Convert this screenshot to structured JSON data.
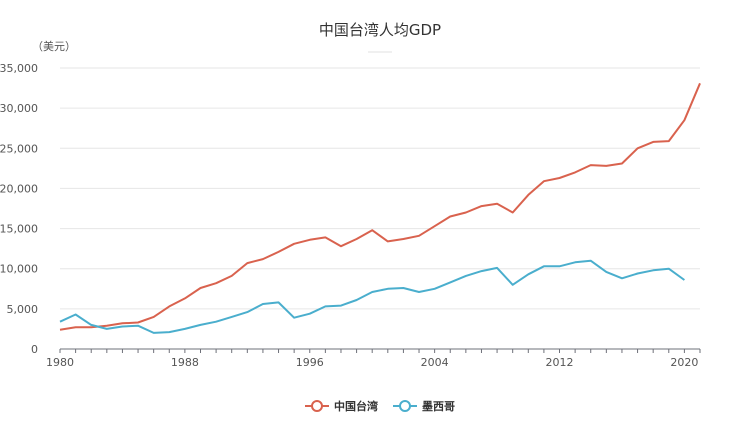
{
  "chart_data": {
    "type": "line",
    "title": "中国台湾人均GDP",
    "ylabel": "（美元）",
    "xlabel": "",
    "ylim": [
      0,
      35000
    ],
    "yticks": [
      0,
      5000,
      10000,
      15000,
      20000,
      25000,
      30000,
      35000
    ],
    "ytick_labels": [
      "0",
      "5,000",
      "10,000",
      "15,000",
      "20,000",
      "25,000",
      "30,000",
      "35,000"
    ],
    "xlim": [
      1980,
      2021
    ],
    "xticks": [
      1980,
      1988,
      1996,
      2004,
      2012,
      2020
    ],
    "xtick_labels": [
      "1980",
      "1988",
      "1996",
      "2004",
      "2012",
      "2020"
    ],
    "grid": "horizontal",
    "legend_position": "bottom-center",
    "x": [
      1980,
      1981,
      1982,
      1983,
      1984,
      1985,
      1986,
      1987,
      1988,
      1989,
      1990,
      1991,
      1992,
      1993,
      1994,
      1995,
      1996,
      1997,
      1998,
      1999,
      2000,
      2001,
      2002,
      2003,
      2004,
      2005,
      2006,
      2007,
      2008,
      2009,
      2010,
      2011,
      2012,
      2013,
      2014,
      2015,
      2016,
      2017,
      2018,
      2019,
      2020,
      2021
    ],
    "series": [
      {
        "name": "中国台湾",
        "color": "#d9624e",
        "values": [
          2400,
          2700,
          2700,
          2900,
          3200,
          3300,
          4000,
          5300,
          6300,
          7600,
          8200,
          9100,
          10700,
          11200,
          12100,
          13100,
          13600,
          13900,
          12800,
          13700,
          14800,
          13400,
          13700,
          14100,
          15300,
          16500,
          17000,
          17800,
          18100,
          17000,
          19200,
          20900,
          21300,
          22000,
          22900,
          22800,
          23100,
          25000,
          25800,
          25900,
          28500,
          33100
        ]
      },
      {
        "name": "墨西哥",
        "color": "#4aaecd",
        "values": [
          3400,
          4300,
          3000,
          2500,
          2800,
          2900,
          2000,
          2100,
          2500,
          3000,
          3400,
          4000,
          4600,
          5600,
          5800,
          3900,
          4400,
          5300,
          5400,
          6100,
          7100,
          7500,
          7600,
          7100,
          7500,
          8300,
          9100,
          9700,
          10100,
          8000,
          9300,
          10300,
          10300,
          10800,
          11000,
          9600,
          8800,
          9400,
          9800,
          10000,
          8600,
          null
        ]
      }
    ]
  }
}
